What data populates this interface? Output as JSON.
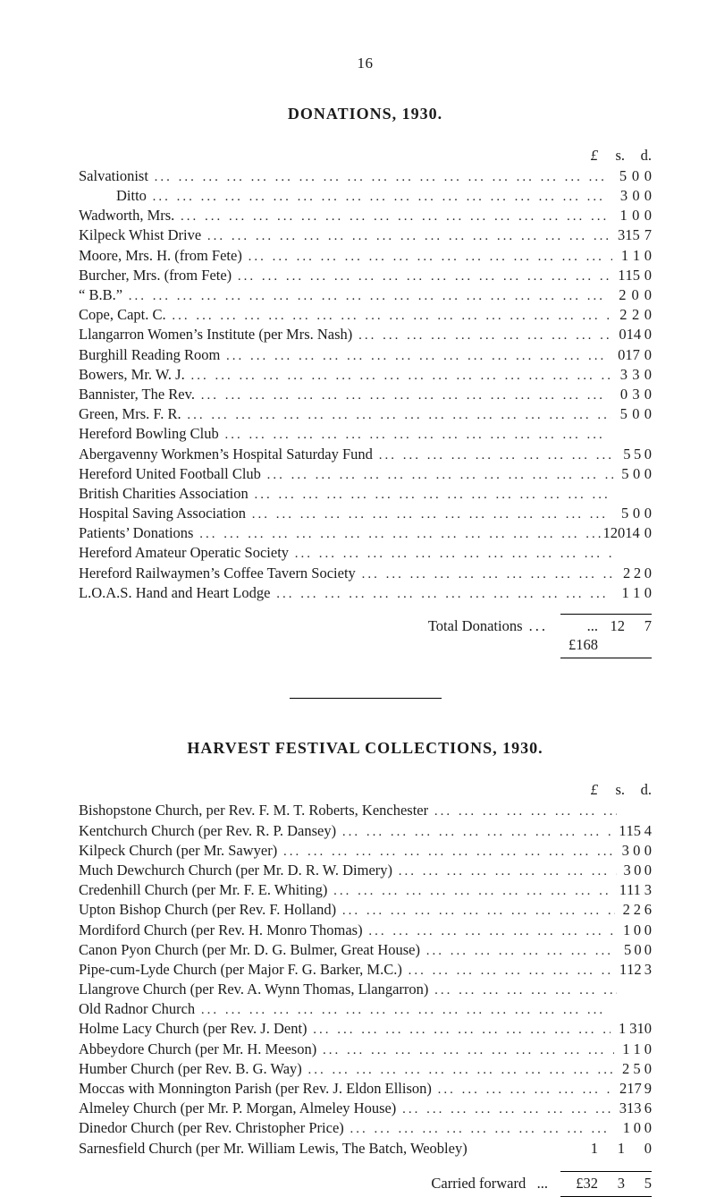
{
  "page_number": "16",
  "section1": {
    "title": "DONATIONS, 1930.",
    "currency_header": {
      "pounds": "£",
      "shillings": "s.",
      "pence": "d."
    },
    "entries": [
      {
        "label": "Salvationist",
        "p": "5",
        "s": "0",
        "d": "0"
      },
      {
        "label": "Ditto",
        "indent": true,
        "p": "3",
        "s": "0",
        "d": "0"
      },
      {
        "label": "Wadworth, Mrs.",
        "p": "1",
        "s": "0",
        "d": "0"
      },
      {
        "label": "Kilpeck Whist Drive",
        "p": "3",
        "s": "15",
        "d": "7"
      },
      {
        "label": "Moore, Mrs. H. (from Fete)",
        "p": "1",
        "s": "1",
        "d": "0"
      },
      {
        "label": "Burcher, Mrs. (from Fete)",
        "p": "1",
        "s": "15",
        "d": "0"
      },
      {
        "label": "“ B.B.”",
        "p": "2",
        "s": "0",
        "d": "0"
      },
      {
        "label": "Cope, Capt. C.",
        "p": "2",
        "s": "2",
        "d": "0"
      },
      {
        "label": "Llangarron Women’s Institute (per Mrs. Nash)",
        "p": "0",
        "s": "14",
        "d": "0"
      },
      {
        "label": "Burghill Reading Room",
        "p": "0",
        "s": "17",
        "d": "0"
      },
      {
        "label": "Bowers, Mr. W. J.",
        "p": "3",
        "s": "3",
        "d": "0"
      },
      {
        "label": "Bannister, The Rev.",
        "p": "0",
        "s": "3",
        "d": "0"
      },
      {
        "label": "Green, Mrs. F. R.",
        "p": "5",
        "s": "0",
        "d": "0"
      },
      {
        "label": "Hereford Bowling Club",
        "no_amount": true
      },
      {
        "label": "Abergavenny Workmen’s Hospital Saturday Fund",
        "p": "5",
        "s": "5",
        "d": "0"
      },
      {
        "label": "Hereford United Football Club",
        "p": "5",
        "s": "0",
        "d": "0"
      },
      {
        "label": "British Charities Association",
        "no_amount": true
      },
      {
        "label": "Hospital Saving Association",
        "p": "5",
        "s": "0",
        "d": "0"
      },
      {
        "label": "Patients’ Donations",
        "p": "120",
        "s": "14",
        "d": "0"
      },
      {
        "label": "Hereford Amateur Operatic Society",
        "no_amount": true
      },
      {
        "label": "Hereford Railwaymen’s Coffee Tavern Society",
        "p": "2",
        "s": "2",
        "d": "0"
      },
      {
        "label": "L.O.A.S. Hand and Heart Lodge",
        "p": "1",
        "s": "1",
        "d": "0"
      }
    ],
    "total": {
      "label": "Total Donations",
      "p": "...£168",
      "s": "12",
      "d": "7"
    }
  },
  "section2": {
    "title": "HARVEST FESTIVAL COLLECTIONS, 1930.",
    "currency_header": {
      "pounds": "£",
      "shillings": "s.",
      "pence": "d."
    },
    "entries": [
      {
        "label": "Bishopstone Church, per Rev. F. M. T. Roberts, Kenchester",
        "no_amount": true
      },
      {
        "label": "Kentchurch Church (per Rev. R. P. Dansey)",
        "p": "1",
        "s": "15",
        "d": "4"
      },
      {
        "label": "Kilpeck Church (per Mr. Sawyer)",
        "p": "3",
        "s": "0",
        "d": "0"
      },
      {
        "label": "Much Dewchurch Church (per Mr. D. R. W. Dimery)",
        "p": "3",
        "s": "0",
        "d": "0"
      },
      {
        "label": "Credenhill Church (per Mr. F. E. Whiting)",
        "p": "1",
        "s": "11",
        "d": "3"
      },
      {
        "label": "Upton Bishop Church (per Rev. F. Holland)",
        "p": "2",
        "s": "2",
        "d": "6"
      },
      {
        "label": "Mordiford Church (per Rev. H. Monro Thomas)",
        "p": "1",
        "s": "0",
        "d": "0"
      },
      {
        "label": "Canon Pyon Church (per Mr. D. G. Bulmer, Great House)",
        "p": "5",
        "s": "0",
        "d": "0"
      },
      {
        "label": "Pipe-cum-Lyde Church (per Major F. G. Barker, M.C.)",
        "p": "1",
        "s": "12",
        "d": "3"
      },
      {
        "label": "Llangrove Church (per Rev. A. Wynn Thomas, Llangarron)",
        "no_amount": true
      },
      {
        "label": "Old Radnor Church",
        "no_amount": true
      },
      {
        "label": "Holme Lacy Church (per Rev. J. Dent)",
        "p": "1",
        "s": "3",
        "d": "10"
      },
      {
        "label": "Abbeydore Church (per Mr. H. Meeson)",
        "p": "1",
        "s": "1",
        "d": "0"
      },
      {
        "label": "Humber Church (per Rev. B. G. Way)",
        "p": "2",
        "s": "5",
        "d": "0"
      },
      {
        "label": "Moccas with Monnington Parish (per Rev. J. Eldon Ellison)",
        "p": "2",
        "s": "17",
        "d": "9"
      },
      {
        "label": "Almeley Church (per Mr. P. Morgan, Almeley House)",
        "p": "3",
        "s": "13",
        "d": "6"
      },
      {
        "label": "Dinedor Church (per Rev. Christopher Price)",
        "p": "1",
        "s": "0",
        "d": "0"
      },
      {
        "label": "Sarnesfield Church (per Mr. William Lewis, The Batch, Weobley)",
        "no_leader": true,
        "p": "1",
        "s": "1",
        "d": "0"
      }
    ],
    "carried": {
      "label": "Carried forward",
      "p": "£32",
      "s": "3",
      "d": "5"
    }
  }
}
